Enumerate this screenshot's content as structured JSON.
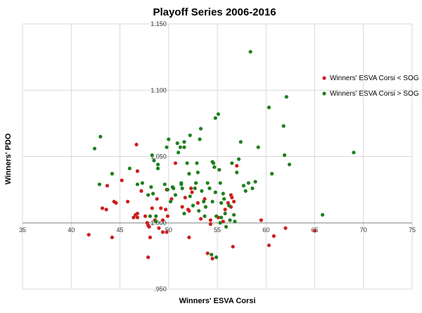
{
  "chart_data": {
    "type": "scatter",
    "title": "Playoff Series 2006-2016",
    "xlabel": "Winners' ESVA Corsi",
    "ylabel": "Winners' PDO",
    "xlim": [
      35,
      75
    ],
    "ylim": [
      0.95,
      1.15
    ],
    "x_ticks": [
      "35",
      "40",
      "45",
      "50",
      "55",
      "60",
      "65",
      "70",
      "75"
    ],
    "y_ticks": [
      ".950",
      "1.000",
      "1.050",
      "1.100",
      "1.150"
    ],
    "grid": true,
    "legend": "right",
    "series": [
      {
        "name": "Winners' ESVA Corsi < SOG",
        "color": "#cc1f1f",
        "points": [
          [
            41.8,
            0.991
          ],
          [
            43.2,
            1.011
          ],
          [
            43.7,
            1.028
          ],
          [
            43.6,
            1.01
          ],
          [
            44.2,
            0.989
          ],
          [
            44.4,
            1.016
          ],
          [
            44.6,
            1.015
          ],
          [
            45.2,
            1.032
          ],
          [
            45.8,
            1.016
          ],
          [
            46.7,
            1.059
          ],
          [
            46.4,
            1.004
          ],
          [
            46.6,
            1.006
          ],
          [
            46.8,
            1.004
          ],
          [
            46.8,
            1.007
          ],
          [
            46.8,
            1.039
          ],
          [
            47.2,
            1.024
          ],
          [
            47.6,
            1.005
          ],
          [
            47.8,
            1.0
          ],
          [
            47.9,
            0.998
          ],
          [
            48.0,
            0.997
          ],
          [
            47.9,
            0.974
          ],
          [
            48.1,
            0.989
          ],
          [
            48.3,
            1.011
          ],
          [
            48.6,
            1.002
          ],
          [
            48.8,
            1.018
          ],
          [
            49.0,
            0.996
          ],
          [
            49.2,
            1.011
          ],
          [
            49.4,
            0.993
          ],
          [
            49.4,
            1.002
          ],
          [
            49.7,
            1.01
          ],
          [
            49.8,
            0.993
          ],
          [
            49.9,
            1.005
          ],
          [
            49.8,
            1.025
          ],
          [
            50.3,
            1.018
          ],
          [
            50.7,
            1.045
          ],
          [
            51.4,
            1.012
          ],
          [
            51.7,
            1.019
          ],
          [
            52.0,
            1.01
          ],
          [
            52.1,
            1.009
          ],
          [
            52.1,
            0.989
          ],
          [
            52.3,
            1.026
          ],
          [
            52.4,
            1.023
          ],
          [
            53.0,
            1.015
          ],
          [
            53.3,
            1.003
          ],
          [
            53.7,
            1.018
          ],
          [
            54.0,
            0.977
          ],
          [
            54.3,
            0.999
          ],
          [
            54.3,
            1.002
          ],
          [
            54.5,
            0.973
          ],
          [
            55.1,
            1.004
          ],
          [
            55.6,
            1.001
          ],
          [
            55.8,
            1.01
          ],
          [
            56.1,
            1.015
          ],
          [
            56.4,
            1.021
          ],
          [
            56.5,
            1.019
          ],
          [
            56.4,
            1.012
          ],
          [
            56.7,
            1.016
          ],
          [
            56.6,
            0.982
          ],
          [
            57.0,
            1.043
          ],
          [
            59.5,
            1.002
          ],
          [
            60.3,
            0.983
          ],
          [
            60.8,
            0.99
          ],
          [
            62.0,
            0.996
          ],
          [
            65.0,
            0.994
          ]
        ]
      },
      {
        "name": "Winners' ESVA Corsi > SOG",
        "color": "#1e7f1e",
        "points": [
          [
            42.4,
            1.056
          ],
          [
            43.0,
            1.065
          ],
          [
            42.9,
            1.029
          ],
          [
            44.2,
            1.037
          ],
          [
            46.0,
            1.041
          ],
          [
            46.8,
            1.029
          ],
          [
            47.3,
            1.03
          ],
          [
            47.9,
            1.021
          ],
          [
            48.1,
            1.005
          ],
          [
            48.2,
            1.027
          ],
          [
            48.3,
            1.051
          ],
          [
            48.5,
            1.047
          ],
          [
            48.4,
            1.022
          ],
          [
            48.7,
            1.005
          ],
          [
            48.9,
            1.044
          ],
          [
            48.9,
            1.041
          ],
          [
            48.7,
            1.001
          ],
          [
            49.8,
            1.057
          ],
          [
            50.0,
            1.063
          ],
          [
            49.9,
            1.025
          ],
          [
            49.6,
            1.029
          ],
          [
            50.4,
            1.027
          ],
          [
            50.5,
            1.026
          ],
          [
            50.2,
            1.016
          ],
          [
            50.7,
            1.021
          ],
          [
            50.9,
            1.06
          ],
          [
            51.2,
            1.057
          ],
          [
            51.0,
            1.053
          ],
          [
            51.3,
            1.029
          ],
          [
            51.6,
            1.057
          ],
          [
            51.6,
            1.061
          ],
          [
            51.3,
            1.03
          ],
          [
            51.4,
            1.026
          ],
          [
            51.6,
            1.007
          ],
          [
            51.9,
            1.045
          ],
          [
            52.1,
            1.037
          ],
          [
            52.2,
            1.066
          ],
          [
            52.2,
            1.02
          ],
          [
            52.5,
            1.013
          ],
          [
            52.7,
            1.026
          ],
          [
            52.8,
            1.03
          ],
          [
            53.0,
            1.038
          ],
          [
            52.9,
            1.045
          ],
          [
            53.2,
            1.063
          ],
          [
            53.3,
            1.071
          ],
          [
            53.1,
            1.009
          ],
          [
            53.4,
            1.024
          ],
          [
            53.6,
            1.016
          ],
          [
            53.8,
            1.012
          ],
          [
            53.7,
            1.005
          ],
          [
            54.0,
            1.03
          ],
          [
            54.2,
            1.026
          ],
          [
            54.5,
            1.046
          ],
          [
            54.6,
            1.045
          ],
          [
            54.5,
            1.016
          ],
          [
            54.8,
            1.079
          ],
          [
            54.7,
            1.042
          ],
          [
            54.8,
            1.023
          ],
          [
            54.9,
            1.005
          ],
          [
            55.1,
            1.082
          ],
          [
            55.2,
            1.04
          ],
          [
            55.3,
            1.03
          ],
          [
            55.4,
            1.015
          ],
          [
            55.3,
            1.0
          ],
          [
            55.4,
            1.004
          ],
          [
            55.6,
            1.022
          ],
          [
            55.7,
            1.018
          ],
          [
            55.8,
            1.007
          ],
          [
            55.9,
            0.997
          ],
          [
            56.2,
            1.013
          ],
          [
            56.3,
            1.002
          ],
          [
            56.5,
            1.045
          ],
          [
            56.7,
            1.006
          ],
          [
            56.8,
            1.001
          ],
          [
            57.0,
            1.038
          ],
          [
            57.2,
            1.048
          ],
          [
            57.4,
            1.061
          ],
          [
            57.7,
            1.028
          ],
          [
            57.9,
            1.024
          ],
          [
            58.2,
            1.03
          ],
          [
            58.4,
            1.129
          ],
          [
            58.6,
            1.026
          ],
          [
            58.9,
            1.031
          ],
          [
            59.2,
            1.057
          ],
          [
            60.3,
            1.087
          ],
          [
            60.6,
            1.037
          ],
          [
            61.8,
            1.073
          ],
          [
            61.9,
            1.051
          ],
          [
            62.1,
            1.095
          ],
          [
            62.4,
            1.044
          ],
          [
            65.8,
            1.006
          ],
          [
            69.0,
            1.053
          ],
          [
            54.9,
            0.974
          ],
          [
            54.4,
            0.976
          ]
        ]
      }
    ]
  }
}
